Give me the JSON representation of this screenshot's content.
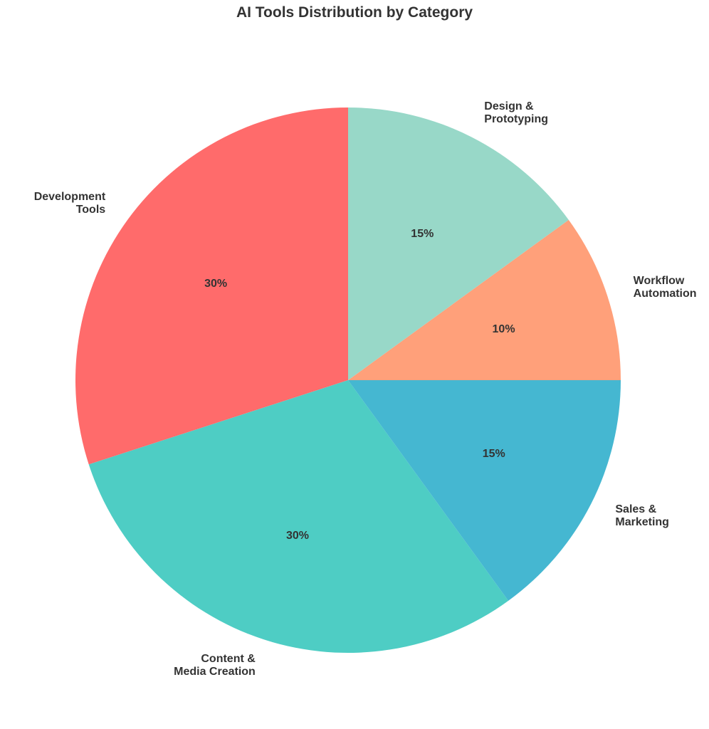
{
  "chart_data": {
    "type": "pie",
    "title": "AI Tools Distribution by Category",
    "categories": [
      "Development\nTools",
      "Content &\nMedia Creation",
      "Sales &\nMarketing",
      "Workflow\nAutomation",
      "Design &\nPrototyping"
    ],
    "values": [
      30,
      30,
      15,
      10,
      15
    ],
    "value_labels": [
      "30%",
      "30%",
      "15%",
      "10%",
      "15%"
    ],
    "colors": [
      "#ff6b6b",
      "#4ecdc4",
      "#45b7d1",
      "#ffa07a",
      "#98d8c8"
    ]
  }
}
